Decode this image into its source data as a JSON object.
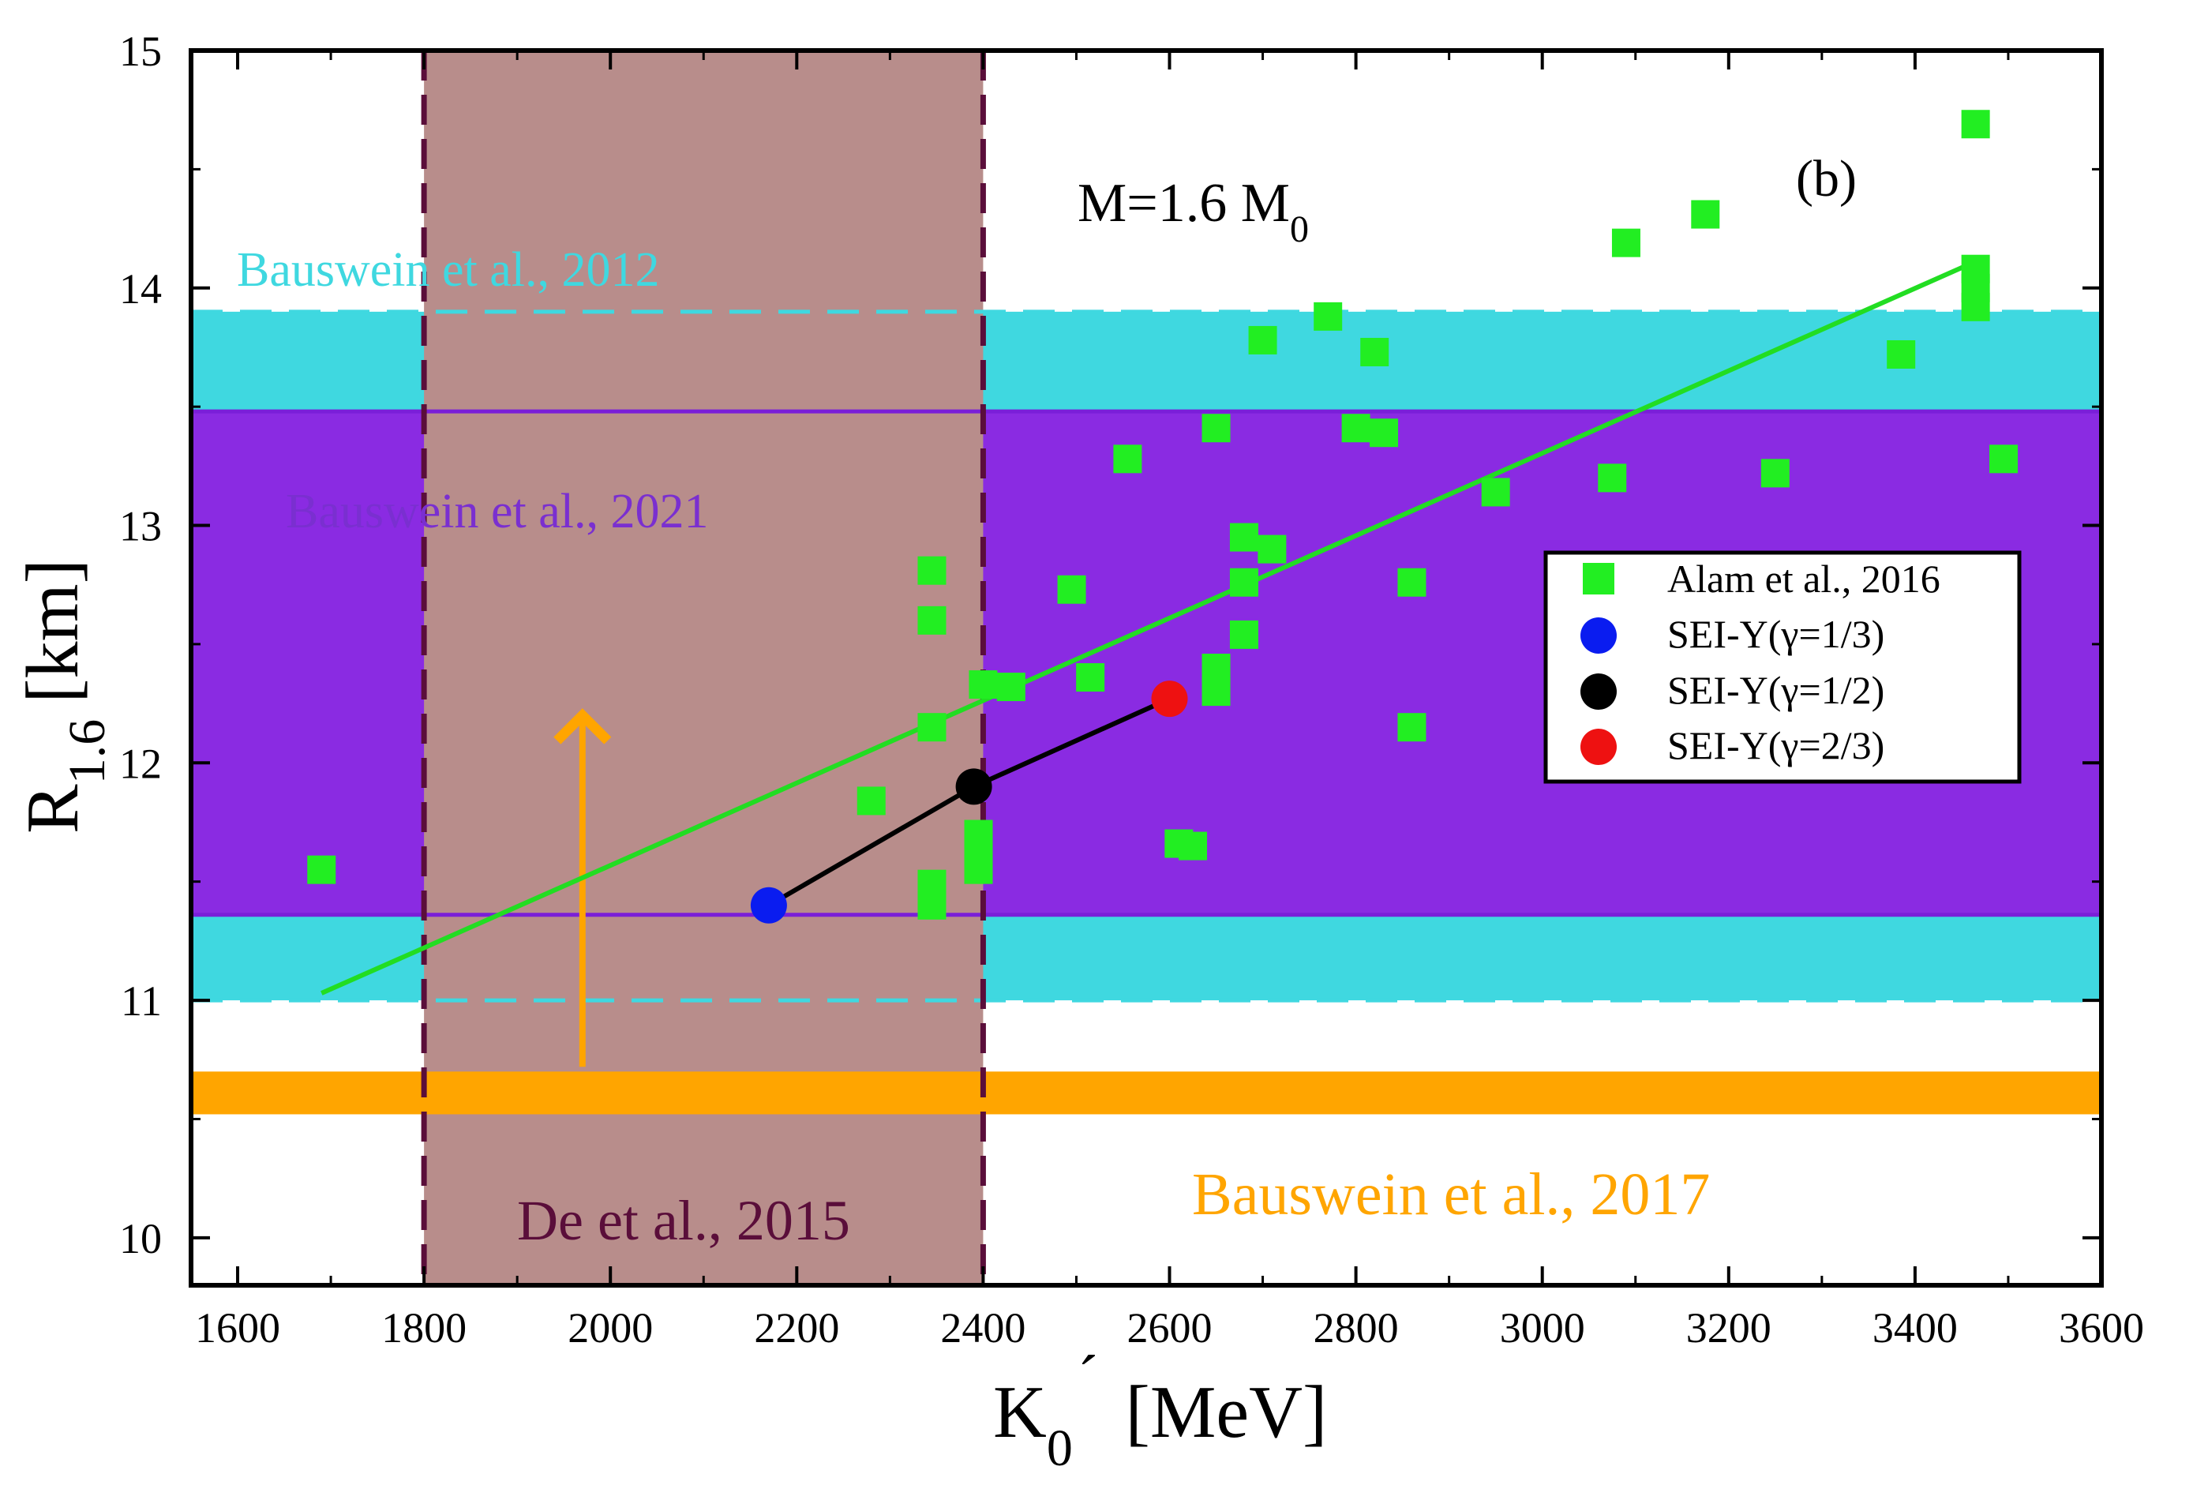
{
  "chart_data": {
    "type": "scatter",
    "panel_label": "(b)",
    "mass_label": {
      "main": "M=1.6 M",
      "sub": "0"
    },
    "xlabel": {
      "main": "K",
      "sub": "0",
      "prime": "´",
      "rest": "[MeV]"
    },
    "ylabel": {
      "main": "R",
      "sub": "1.6",
      "rest": "[km]"
    },
    "xlim": [
      1550,
      3600
    ],
    "ylim": [
      9.8,
      15
    ],
    "xticks": [
      "1600",
      "1800",
      "2000",
      "2200",
      "2400",
      "2600",
      "2800",
      "3000",
      "3200",
      "3400",
      "3600"
    ],
    "yticks": [
      "10",
      "11",
      "12",
      "13",
      "14",
      "15"
    ],
    "bands": {
      "bauswein2012": {
        "label": "Bauswein et al., 2012",
        "ymin": 11.0,
        "ymax": 13.9,
        "color": "#3fd8e0"
      },
      "bauswein2021": {
        "label": "Bauswein et al., 2021",
        "ymin": 11.36,
        "ymax": 13.48,
        "color": "#8a2be2"
      },
      "bauswein2017": {
        "label": "Bauswein et al., 2017",
        "ymin": 10.52,
        "ymax": 10.7,
        "color": "#ffa500"
      },
      "de2015": {
        "label": "De et al., 2015",
        "xmin": 1800,
        "xmax": 2400,
        "color": "#b88d8b"
      }
    },
    "arrow": {
      "x": 1970,
      "y_from": 10.72,
      "y_to": 12.2,
      "color": "#ffa500"
    },
    "fit_line": {
      "x": [
        1690,
        3470
      ],
      "y": [
        11.03,
        14.12
      ],
      "color": "#22dd22"
    },
    "sei_line": {
      "x": [
        2170,
        2390,
        2600
      ],
      "y": [
        11.4,
        11.9,
        12.27
      ]
    },
    "series": [
      {
        "name": "Alam et al., 2016",
        "marker": "square",
        "color": "#22ee22",
        "points": [
          [
            1690,
            11.55
          ],
          [
            2280,
            11.84
          ],
          [
            2345,
            12.81
          ],
          [
            2345,
            12.6
          ],
          [
            2345,
            12.15
          ],
          [
            2345,
            11.49
          ],
          [
            2345,
            11.4
          ],
          [
            2395,
            11.7
          ],
          [
            2395,
            11.63
          ],
          [
            2395,
            11.55
          ],
          [
            2400,
            12.33
          ],
          [
            2430,
            12.32
          ],
          [
            2495,
            12.73
          ],
          [
            2515,
            12.36
          ],
          [
            2555,
            13.28
          ],
          [
            2610,
            11.66
          ],
          [
            2625,
            11.65
          ],
          [
            2650,
            13.41
          ],
          [
            2650,
            12.4
          ],
          [
            2650,
            12.3
          ],
          [
            2680,
            12.95
          ],
          [
            2680,
            12.76
          ],
          [
            2680,
            12.54
          ],
          [
            2700,
            13.78
          ],
          [
            2710,
            12.9
          ],
          [
            2770,
            13.88
          ],
          [
            2800,
            13.41
          ],
          [
            2820,
            13.73
          ],
          [
            2830,
            13.39
          ],
          [
            2860,
            12.76
          ],
          [
            2860,
            12.15
          ],
          [
            2950,
            13.14
          ],
          [
            3075,
            13.2
          ],
          [
            3090,
            14.19
          ],
          [
            3175,
            14.31
          ],
          [
            3250,
            13.22
          ],
          [
            3385,
            13.72
          ],
          [
            3465,
            14.69
          ],
          [
            3465,
            14.08
          ],
          [
            3465,
            14.0
          ],
          [
            3465,
            13.92
          ],
          [
            3495,
            13.28
          ]
        ]
      },
      {
        "name": "SEI-Y(γ=1/3)",
        "marker": "circle",
        "color": "#0a1cf0",
        "points": [
          [
            2170,
            11.4
          ]
        ]
      },
      {
        "name": "SEI-Y(γ=1/2)",
        "marker": "circle",
        "color": "#000000",
        "points": [
          [
            2390,
            11.9
          ]
        ]
      },
      {
        "name": "SEI-Y(γ=2/3)",
        "marker": "circle",
        "color": "#ee1111",
        "points": [
          [
            2600,
            12.27
          ]
        ]
      }
    ],
    "legend_position": "right"
  }
}
